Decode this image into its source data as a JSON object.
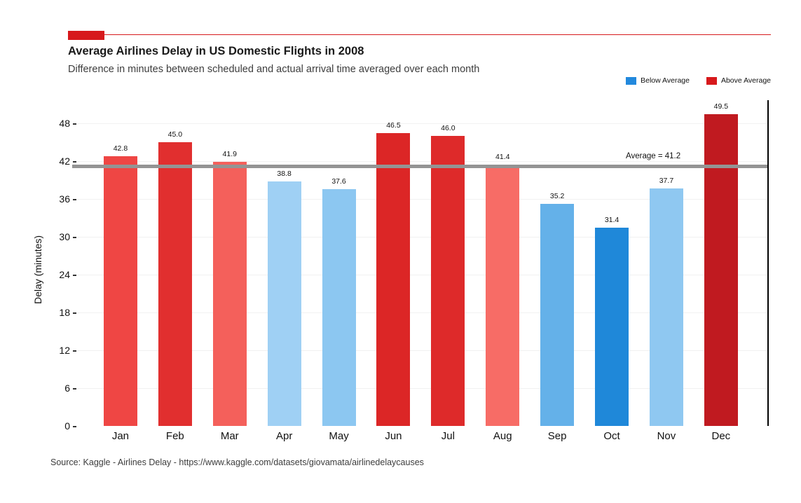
{
  "header": {
    "title": "Average Airlines Delay in US Domestic Flights in 2008",
    "subtitle": "Difference in minutes between scheduled and actual arrival time averaged over each month",
    "accent_color": "#d7191c"
  },
  "legend": [
    {
      "label": "Below Average",
      "color": "#2289dd"
    },
    {
      "label": "Above Average",
      "color": "#d7191c"
    }
  ],
  "chart_data": {
    "type": "bar",
    "title": "Average Airlines Delay in US Domestic Flights in 2008",
    "xlabel": "",
    "ylabel": "Delay (minutes)",
    "categories": [
      "Jan",
      "Feb",
      "Mar",
      "Apr",
      "May",
      "Jun",
      "Jul",
      "Aug",
      "Sep",
      "Oct",
      "Nov",
      "Dec"
    ],
    "values": [
      42.8,
      45.0,
      41.9,
      38.8,
      37.6,
      46.5,
      46.0,
      41.4,
      35.2,
      31.4,
      37.7,
      49.5
    ],
    "value_labels": [
      "42.8",
      "45.0",
      "41.9",
      "38.8",
      "37.6",
      "46.5",
      "46.0",
      "41.4",
      "35.2",
      "31.4",
      "37.7",
      "49.5"
    ],
    "bar_colors": [
      "#ef4644",
      "#e12f2f",
      "#f4605b",
      "#9fd0f4",
      "#8cc7f1",
      "#dc2626",
      "#de2a2a",
      "#f76c66",
      "#64b1e9",
      "#1f88d9",
      "#8fc8f1",
      "#c01a20"
    ],
    "average": 41.2,
    "average_label": "Average = 41.2",
    "average_line_color": "#949494",
    "yticks": [
      0,
      6,
      12,
      18,
      24,
      30,
      36,
      42,
      48
    ],
    "ylim": [
      0,
      51
    ],
    "grid": "horizontal-subtle",
    "legend_position": "top-right"
  },
  "footer": {
    "source": "Source: Kaggle - Airlines Delay - https://www.kaggle.com/datasets/giovamata/airlinedelaycauses"
  }
}
